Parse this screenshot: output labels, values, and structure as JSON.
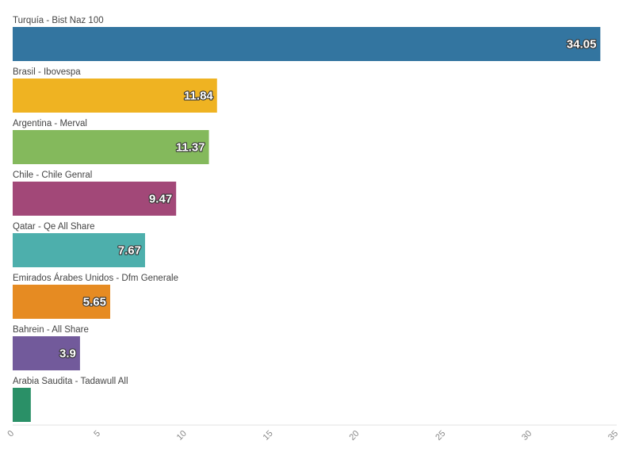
{
  "chart_data": {
    "type": "bar",
    "orientation": "horizontal",
    "categories": [
      "Turquía - Bist Naz 100",
      "Brasil - Ibovespa",
      "Argentina - Merval",
      "Chile - Chile Genral",
      "Qatar - Qe All Share",
      "Emirados Árabes Unidos - Dfm Generale",
      "Bahrein - All Share",
      "Arabia Saudita - Tadawull All"
    ],
    "values": [
      34.05,
      11.84,
      11.37,
      9.47,
      7.67,
      5.65,
      3.9,
      1.05
    ],
    "data_labels": [
      "34.05",
      "11.84",
      "11.37",
      "9.47",
      "7.67",
      "5.65",
      "3.9",
      ""
    ],
    "colors": [
      "#3375a0",
      "#efb322",
      "#84b95c",
      "#a24878",
      "#4dafac",
      "#e68b22",
      "#725a9b",
      "#2a9067"
    ],
    "xlim": [
      0,
      35
    ],
    "x_ticks": [
      "0",
      "5",
      "10",
      "15",
      "20",
      "25",
      "30",
      "35"
    ],
    "title": "",
    "xlabel": "",
    "ylabel": "",
    "grid": false,
    "legend": "none"
  }
}
